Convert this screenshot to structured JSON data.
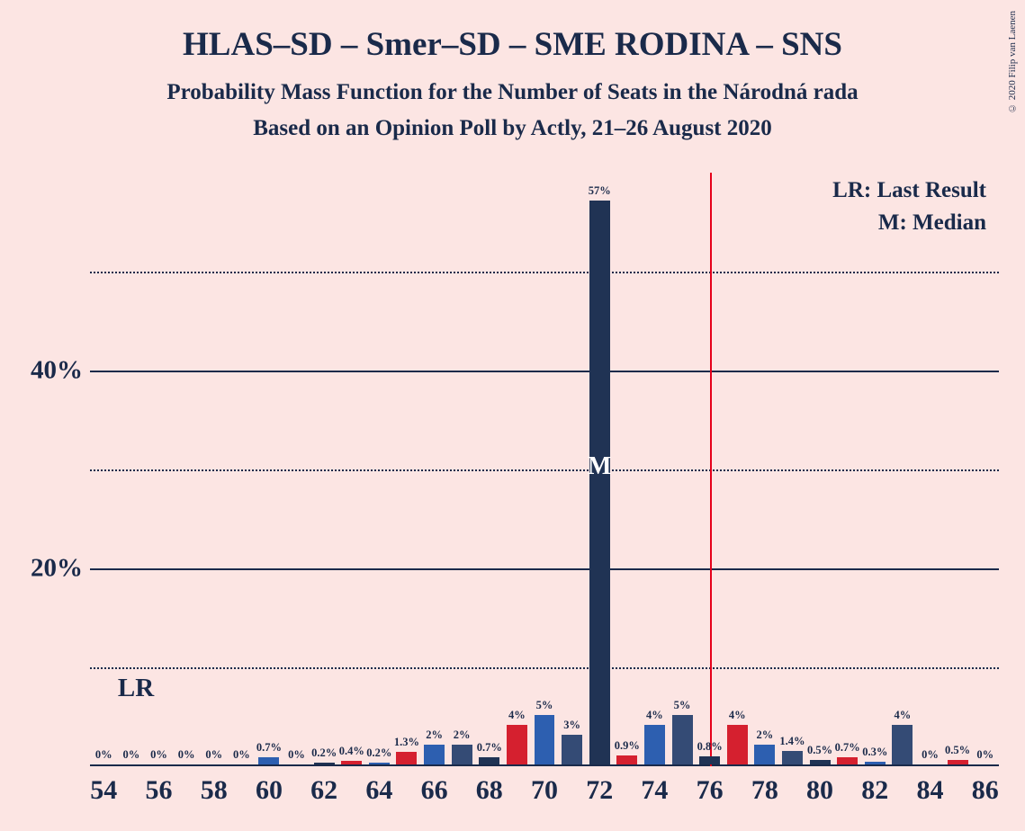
{
  "title": "HLAS–SD – Smer–SD – SME RODINA – SNS",
  "subtitle1": "Probability Mass Function for the Number of Seats in the Národná rada",
  "subtitle2": "Based on an Opinion Poll by Actly, 21–26 August 2020",
  "copyright": "© 2020 Filip van Laenen",
  "legend": {
    "lr": "LR: Last Result",
    "m": "M: Median"
  },
  "lr_marker": "LR",
  "median_marker": "M",
  "chart": {
    "type": "bar",
    "background_color": "#fce5e3",
    "text_color": "#1a2a4a",
    "x_min": 53.5,
    "x_max": 86.5,
    "y_max": 60,
    "y_gridlines_dotted": [
      10,
      30,
      50
    ],
    "y_gridlines_solid": [
      20,
      40
    ],
    "y_labels": [
      {
        "value": 20,
        "text": "20%"
      },
      {
        "value": 40,
        "text": "40%"
      }
    ],
    "x_ticks": [
      54,
      56,
      58,
      60,
      62,
      64,
      66,
      68,
      70,
      72,
      74,
      76,
      78,
      80,
      82,
      84,
      86
    ],
    "majority_at": 76,
    "majority_color": "#e6001a",
    "lr_at": 55,
    "median_at": 72,
    "colors": {
      "darknavy": "#203354",
      "red": "#d5202f",
      "blue": "#2d5fb0",
      "midnavy": "#344b75"
    },
    "bar_width": 0.75,
    "bars": [
      {
        "x": 54,
        "value": 0,
        "label": "0%",
        "color": "darknavy"
      },
      {
        "x": 55,
        "value": 0,
        "label": "0%",
        "color": "red"
      },
      {
        "x": 56,
        "value": 0,
        "label": "0%",
        "color": "blue"
      },
      {
        "x": 57,
        "value": 0,
        "label": "0%",
        "color": "midnavy"
      },
      {
        "x": 58,
        "value": 0,
        "label": "0%",
        "color": "darknavy"
      },
      {
        "x": 59,
        "value": 0,
        "label": "0%",
        "color": "red"
      },
      {
        "x": 60,
        "value": 0.7,
        "label": "0.7%",
        "color": "blue"
      },
      {
        "x": 61,
        "value": 0,
        "label": "0%",
        "color": "midnavy"
      },
      {
        "x": 62,
        "value": 0.2,
        "label": "0.2%",
        "color": "darknavy"
      },
      {
        "x": 63,
        "value": 0.4,
        "label": "0.4%",
        "color": "red"
      },
      {
        "x": 64,
        "value": 0.2,
        "label": "0.2%",
        "color": "blue"
      },
      {
        "x": 65,
        "value": 1.3,
        "label": "1.3%",
        "color": "midnavy"
      },
      {
        "x": 66,
        "value": 2,
        "label": "2%",
        "color": "darknavy"
      },
      {
        "x": 67,
        "value": 2,
        "label": "2%",
        "color": "red"
      },
      {
        "x": 68,
        "value": 0.7,
        "label": "0.7%",
        "color": "blue"
      },
      {
        "x": 69,
        "value": 4,
        "label": "4%",
        "color": "midnavy"
      },
      {
        "x": 70,
        "value": 5,
        "label": "5%",
        "color": "darknavy"
      },
      {
        "x": 71,
        "value": 3,
        "label": "3%",
        "color": "red"
      },
      {
        "x": 72,
        "value": 57,
        "label": "57%",
        "color": "darknavy"
      },
      {
        "x": 73,
        "value": 0.9,
        "label": "0.9%",
        "color": "midnavy"
      },
      {
        "x": 74,
        "value": 4,
        "label": "4%",
        "color": "darknavy"
      },
      {
        "x": 75,
        "value": 5,
        "label": "5%",
        "color": "red"
      },
      {
        "x": 76,
        "value": 0.8,
        "label": "0.8%",
        "color": "blue"
      },
      {
        "x": 77,
        "value": 4,
        "label": "4%",
        "color": "midnavy"
      },
      {
        "x": 78,
        "value": 2,
        "label": "2%",
        "color": "darknavy"
      },
      {
        "x": 79,
        "value": 1.4,
        "label": "1.4%",
        "color": "red"
      },
      {
        "x": 80,
        "value": 0.5,
        "label": "0.5%",
        "color": "blue"
      },
      {
        "x": 81,
        "value": 0.7,
        "label": "0.7%",
        "color": "midnavy"
      },
      {
        "x": 82,
        "value": 0.3,
        "label": "0.3%",
        "color": "darknavy"
      },
      {
        "x": 83,
        "value": 4,
        "label": "4%",
        "color": "red"
      },
      {
        "x": 84,
        "value": 0,
        "label": "0%",
        "color": "blue"
      },
      {
        "x": 85,
        "value": 0.5,
        "label": "0.5%",
        "color": "midnavy"
      },
      {
        "x": 86,
        "value": 0,
        "label": "0%",
        "color": "darknavy"
      }
    ]
  },
  "color_override": {
    "65": "red",
    "66": "blue",
    "67": "midnavy",
    "68": "darknavy",
    "69": "red",
    "70": "blue",
    "71": "midnavy",
    "73": "red",
    "74": "blue",
    "75": "midnavy",
    "76": "darknavy",
    "77": "red",
    "78": "blue",
    "79": "midnavy",
    "80": "darknavy",
    "81": "red",
    "82": "blue",
    "83": "midnavy",
    "84": "darknavy",
    "85": "red",
    "86": "blue"
  }
}
